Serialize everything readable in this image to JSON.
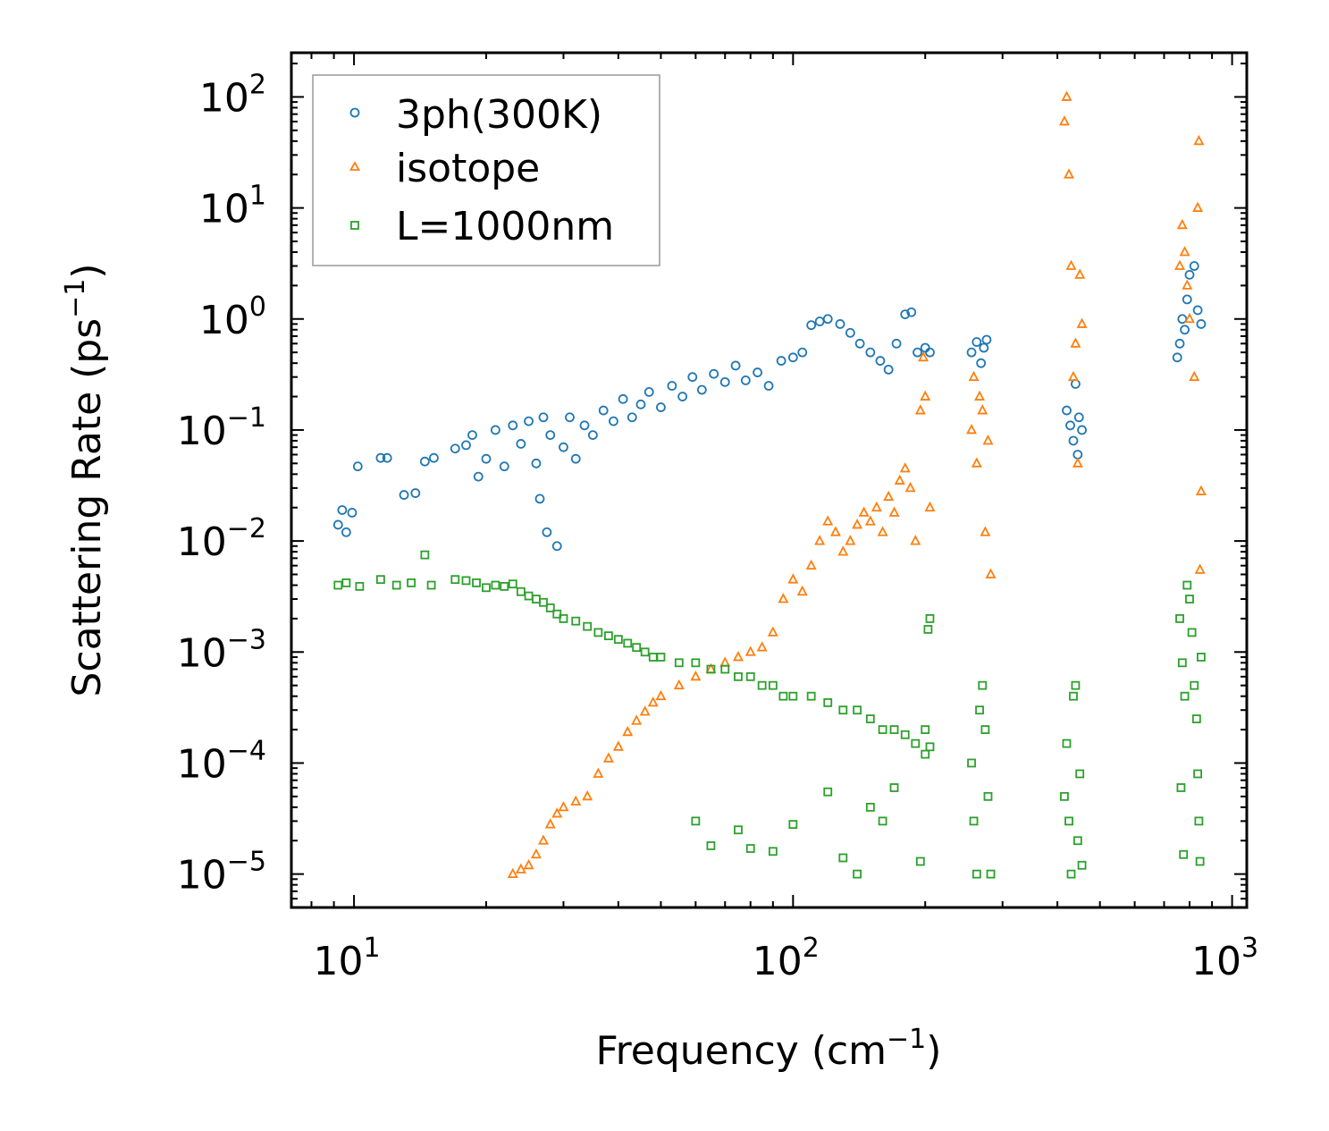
{
  "chart_data": {
    "type": "scatter",
    "title": "",
    "xlabel": "Frequency (cm",
    "xlabel_sup": "−1",
    "xlabel_end": ")",
    "ylabel": "Scattering Rate (ps",
    "ylabel_sup": "−1",
    "ylabel_end": ")",
    "xscale": "log",
    "yscale": "log",
    "xlim": [
      7.2,
      1080
    ],
    "ylim": [
      5e-06,
      250
    ],
    "grid": false,
    "legend_position": "top-left",
    "x_ticks": [
      {
        "value": 10,
        "base": "10",
        "exp": "1"
      },
      {
        "value": 100,
        "base": "10",
        "exp": "2"
      },
      {
        "value": 1000,
        "base": "10",
        "exp": "3"
      }
    ],
    "y_ticks": [
      {
        "value": 1e-05,
        "base": "10",
        "exp": "−5"
      },
      {
        "value": 0.0001,
        "base": "10",
        "exp": "−4"
      },
      {
        "value": 0.001,
        "base": "10",
        "exp": "−3"
      },
      {
        "value": 0.01,
        "base": "10",
        "exp": "−2"
      },
      {
        "value": 0.1,
        "base": "10",
        "exp": "−1"
      },
      {
        "value": 1,
        "base": "10",
        "exp": "0"
      },
      {
        "value": 10,
        "base": "10",
        "exp": "1"
      },
      {
        "value": 100,
        "base": "10",
        "exp": "2"
      }
    ],
    "series": [
      {
        "name": "3ph(300K)",
        "marker": "circle",
        "color": "#1f77b4",
        "points": [
          [
            9.2,
            0.014
          ],
          [
            9.4,
            0.019
          ],
          [
            9.6,
            0.012
          ],
          [
            9.9,
            0.018
          ],
          [
            10.2,
            0.047
          ],
          [
            11.5,
            0.056
          ],
          [
            11.9,
            0.056
          ],
          [
            13.0,
            0.026
          ],
          [
            13.8,
            0.027
          ],
          [
            14.5,
            0.052
          ],
          [
            15.2,
            0.056
          ],
          [
            17.0,
            0.068
          ],
          [
            18.0,
            0.073
          ],
          [
            18.6,
            0.09
          ],
          [
            19.2,
            0.038
          ],
          [
            20.0,
            0.055
          ],
          [
            21.0,
            0.1
          ],
          [
            22.0,
            0.047
          ],
          [
            23.0,
            0.11
          ],
          [
            24.0,
            0.075
          ],
          [
            25.0,
            0.12
          ],
          [
            26.0,
            0.05
          ],
          [
            26.5,
            0.024
          ],
          [
            27.0,
            0.13
          ],
          [
            27.5,
            0.012
          ],
          [
            28.0,
            0.09
          ],
          [
            29.0,
            0.009
          ],
          [
            30.0,
            0.07
          ],
          [
            31.0,
            0.13
          ],
          [
            32.0,
            0.055
          ],
          [
            33.5,
            0.11
          ],
          [
            35.0,
            0.09
          ],
          [
            37.0,
            0.15
          ],
          [
            39.0,
            0.12
          ],
          [
            41.0,
            0.19
          ],
          [
            43.0,
            0.13
          ],
          [
            45.0,
            0.17
          ],
          [
            47.0,
            0.22
          ],
          [
            50.0,
            0.16
          ],
          [
            53.0,
            0.25
          ],
          [
            56.0,
            0.2
          ],
          [
            59.0,
            0.3
          ],
          [
            62.0,
            0.23
          ],
          [
            66.0,
            0.32
          ],
          [
            70.0,
            0.27
          ],
          [
            74.0,
            0.38
          ],
          [
            78.0,
            0.28
          ],
          [
            83.0,
            0.33
          ],
          [
            88.0,
            0.25
          ],
          [
            94.0,
            0.42
          ],
          [
            100.0,
            0.45
          ],
          [
            105.0,
            0.5
          ],
          [
            110.0,
            0.88
          ],
          [
            115.0,
            0.95
          ],
          [
            120.0,
            1.0
          ],
          [
            128.0,
            0.9
          ],
          [
            135.0,
            0.75
          ],
          [
            142.0,
            0.6
          ],
          [
            150.0,
            0.5
          ],
          [
            158.0,
            0.42
          ],
          [
            165.0,
            0.35
          ],
          [
            172.0,
            0.6
          ],
          [
            180.0,
            1.1
          ],
          [
            186.0,
            1.15
          ],
          [
            192.0,
            0.5
          ],
          [
            200.0,
            0.55
          ],
          [
            205.0,
            0.5
          ],
          [
            255.0,
            0.5
          ],
          [
            262.0,
            0.62
          ],
          [
            268.0,
            0.4
          ],
          [
            272.0,
            0.55
          ],
          [
            276.0,
            0.65
          ],
          [
            420.0,
            0.15
          ],
          [
            428.0,
            0.11
          ],
          [
            435.0,
            0.08
          ],
          [
            440.0,
            0.26
          ],
          [
            445.0,
            0.06
          ],
          [
            448.0,
            0.13
          ],
          [
            455.0,
            0.1
          ],
          [
            750.0,
            0.45
          ],
          [
            760.0,
            0.6
          ],
          [
            770.0,
            1.0
          ],
          [
            780.0,
            0.8
          ],
          [
            790.0,
            1.5
          ],
          [
            800.0,
            2.5
          ],
          [
            820.0,
            3.0
          ],
          [
            835.0,
            1.2
          ],
          [
            850.0,
            0.9
          ]
        ]
      },
      {
        "name": "isotope",
        "marker": "triangle",
        "color": "#ff7f0e",
        "points": [
          [
            23.0,
            1e-05
          ],
          [
            24.0,
            1.1e-05
          ],
          [
            25.0,
            1.2e-05
          ],
          [
            26.0,
            1.5e-05
          ],
          [
            27.0,
            2e-05
          ],
          [
            28.0,
            2.8e-05
          ],
          [
            29.0,
            3.5e-05
          ],
          [
            30.0,
            4e-05
          ],
          [
            32.0,
            4.5e-05
          ],
          [
            34.0,
            5e-05
          ],
          [
            36.0,
            8e-05
          ],
          [
            38.0,
            0.00011
          ],
          [
            40.0,
            0.00014
          ],
          [
            42.0,
            0.00019
          ],
          [
            44.0,
            0.00024
          ],
          [
            46.0,
            0.00029
          ],
          [
            48.0,
            0.00035
          ],
          [
            50.0,
            0.0004
          ],
          [
            55.0,
            0.0005
          ],
          [
            60.0,
            0.0006
          ],
          [
            65.0,
            0.0007
          ],
          [
            70.0,
            0.0008
          ],
          [
            75.0,
            0.0009
          ],
          [
            80.0,
            0.001
          ],
          [
            85.0,
            0.0011
          ],
          [
            90.0,
            0.0015
          ],
          [
            95.0,
            0.003
          ],
          [
            100.0,
            0.0045
          ],
          [
            105.0,
            0.0035
          ],
          [
            110.0,
            0.006
          ],
          [
            115.0,
            0.01
          ],
          [
            120.0,
            0.015
          ],
          [
            125.0,
            0.012
          ],
          [
            130.0,
            0.008
          ],
          [
            135.0,
            0.01
          ],
          [
            140.0,
            0.014
          ],
          [
            145.0,
            0.018
          ],
          [
            150.0,
            0.015
          ],
          [
            155.0,
            0.02
          ],
          [
            160.0,
            0.012
          ],
          [
            165.0,
            0.025
          ],
          [
            170.0,
            0.018
          ],
          [
            175.0,
            0.035
          ],
          [
            180.0,
            0.045
          ],
          [
            185.0,
            0.03
          ],
          [
            190.0,
            0.01
          ],
          [
            195.0,
            0.15
          ],
          [
            198.0,
            0.45
          ],
          [
            200.0,
            0.2
          ],
          [
            205.0,
            0.02
          ],
          [
            255.0,
            0.1
          ],
          [
            258.0,
            0.3
          ],
          [
            262.0,
            0.05
          ],
          [
            266.0,
            0.2
          ],
          [
            270.0,
            0.15
          ],
          [
            274.0,
            0.012
          ],
          [
            278.0,
            0.08
          ],
          [
            282.0,
            0.005
          ],
          [
            415.0,
            60.0
          ],
          [
            420.0,
            100.0
          ],
          [
            425.0,
            20.0
          ],
          [
            430.0,
            3.0
          ],
          [
            435.0,
            0.3
          ],
          [
            440.0,
            0.6
          ],
          [
            445.0,
            0.05
          ],
          [
            450.0,
            2.5
          ],
          [
            455.0,
            0.9
          ],
          [
            760.0,
            3.0
          ],
          [
            770.0,
            7.0
          ],
          [
            780.0,
            4.0
          ],
          [
            790.0,
            2.0
          ],
          [
            800.0,
            1.0
          ],
          [
            820.0,
            0.3
          ],
          [
            835.0,
            10.0
          ],
          [
            840.0,
            40.0
          ],
          [
            850.0,
            0.028
          ],
          [
            845.0,
            0.0055
          ]
        ]
      },
      {
        "name": "L=1000nm",
        "marker": "square",
        "color": "#2ca02c",
        "points": [
          [
            9.2,
            0.004
          ],
          [
            9.6,
            0.0042
          ],
          [
            10.3,
            0.0039
          ],
          [
            11.5,
            0.0045
          ],
          [
            12.5,
            0.004
          ],
          [
            13.5,
            0.0042
          ],
          [
            14.5,
            0.0075
          ],
          [
            15.0,
            0.004
          ],
          [
            17.0,
            0.0045
          ],
          [
            18.0,
            0.0044
          ],
          [
            19.0,
            0.0042
          ],
          [
            20.0,
            0.0038
          ],
          [
            21.0,
            0.004
          ],
          [
            22.0,
            0.0039
          ],
          [
            23.0,
            0.0041
          ],
          [
            24.0,
            0.0035
          ],
          [
            25.0,
            0.0032
          ],
          [
            26.0,
            0.003
          ],
          [
            27.0,
            0.0028
          ],
          [
            28.0,
            0.0025
          ],
          [
            29.0,
            0.0022
          ],
          [
            30.0,
            0.002
          ],
          [
            32.0,
            0.0019
          ],
          [
            34.0,
            0.0017
          ],
          [
            36.0,
            0.0015
          ],
          [
            38.0,
            0.0014
          ],
          [
            40.0,
            0.0013
          ],
          [
            42.0,
            0.0012
          ],
          [
            44.0,
            0.0011
          ],
          [
            46.0,
            0.001
          ],
          [
            48.0,
            0.0009
          ],
          [
            50.0,
            0.0009
          ],
          [
            55.0,
            0.0008
          ],
          [
            60.0,
            0.0008
          ],
          [
            65.0,
            0.0007
          ],
          [
            70.0,
            0.0007
          ],
          [
            75.0,
            0.0006
          ],
          [
            80.0,
            0.0006
          ],
          [
            85.0,
            0.0005
          ],
          [
            90.0,
            0.0005
          ],
          [
            95.0,
            0.0004
          ],
          [
            100.0,
            0.0004
          ],
          [
            110.0,
            0.0004
          ],
          [
            120.0,
            0.00035
          ],
          [
            130.0,
            0.0003
          ],
          [
            140.0,
            0.0003
          ],
          [
            150.0,
            0.00025
          ],
          [
            160.0,
            0.0002
          ],
          [
            170.0,
            0.0002
          ],
          [
            180.0,
            0.00018
          ],
          [
            190.0,
            0.00015
          ],
          [
            200.0,
            0.0002
          ],
          [
            205.0,
            0.00014
          ],
          [
            60.0,
            3e-05
          ],
          [
            65.0,
            1.8e-05
          ],
          [
            75.0,
            2.5e-05
          ],
          [
            80.0,
            1.7e-05
          ],
          [
            90.0,
            1.6e-05
          ],
          [
            100.0,
            2.8e-05
          ],
          [
            120.0,
            5.5e-05
          ],
          [
            130.0,
            1.4e-05
          ],
          [
            140.0,
            1e-05
          ],
          [
            150.0,
            4e-05
          ],
          [
            160.0,
            3e-05
          ],
          [
            170.0,
            6e-05
          ],
          [
            195.0,
            1.3e-05
          ],
          [
            200.0,
            0.00012
          ],
          [
            203.0,
            0.0016
          ],
          [
            205.0,
            0.002
          ],
          [
            255.0,
            0.0001
          ],
          [
            258.0,
            3e-05
          ],
          [
            262.0,
            1e-05
          ],
          [
            266.0,
            0.0003
          ],
          [
            270.0,
            0.0005
          ],
          [
            274.0,
            0.0002
          ],
          [
            278.0,
            5e-05
          ],
          [
            282.0,
            1e-05
          ],
          [
            415.0,
            5e-05
          ],
          [
            420.0,
            0.00015
          ],
          [
            425.0,
            3e-05
          ],
          [
            430.0,
            1e-05
          ],
          [
            435.0,
            0.0004
          ],
          [
            440.0,
            0.0005
          ],
          [
            445.0,
            2e-05
          ],
          [
            450.0,
            8e-05
          ],
          [
            455.0,
            1.2e-05
          ],
          [
            760.0,
            0.002
          ],
          [
            765.0,
            6e-05
          ],
          [
            770.0,
            0.0008
          ],
          [
            775.0,
            1.5e-05
          ],
          [
            780.0,
            0.0004
          ],
          [
            790.0,
            0.004
          ],
          [
            800.0,
            0.003
          ],
          [
            810.0,
            0.0015
          ],
          [
            820.0,
            0.0005
          ],
          [
            830.0,
            0.00025
          ],
          [
            835.0,
            8e-05
          ],
          [
            840.0,
            3e-05
          ],
          [
            845.0,
            1.3e-05
          ],
          [
            850.0,
            0.0009
          ]
        ]
      }
    ]
  }
}
